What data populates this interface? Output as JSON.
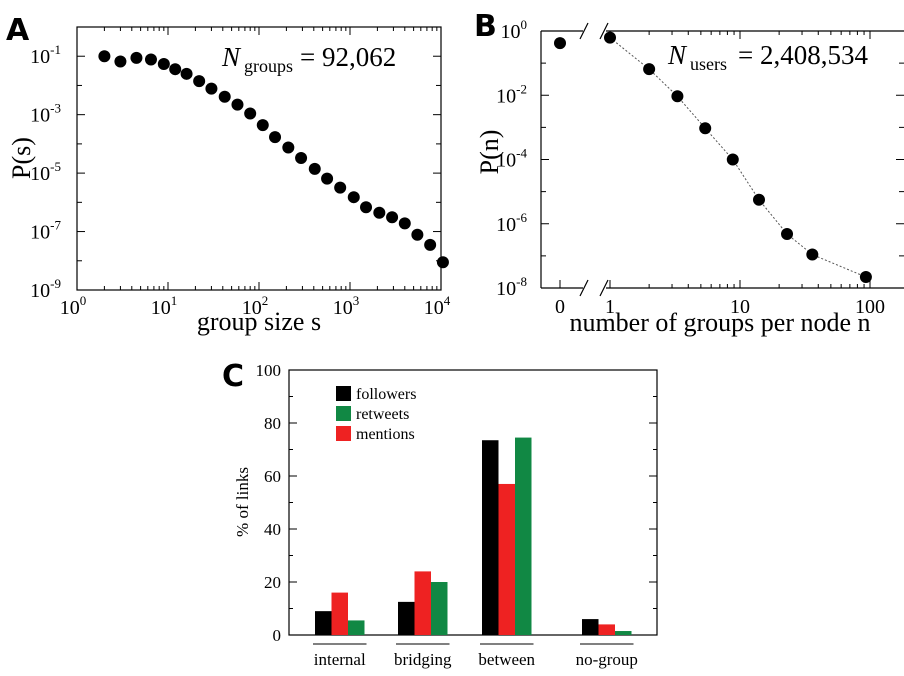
{
  "chart_data": [
    {
      "panel": "A",
      "type": "scatter",
      "xlabel": "group size s",
      "ylabel": "P(s)",
      "annotation": {
        "symbol": "N",
        "subscript": "groups",
        "value": "= 92,062"
      },
      "xscale": "log",
      "yscale": "log",
      "xlim": [
        1,
        10000
      ],
      "ylim": [
        1e-09,
        1
      ],
      "x_ticks": [
        {
          "base": "10",
          "exp": "0"
        },
        {
          "base": "10",
          "exp": "1"
        },
        {
          "base": "10",
          "exp": "2"
        },
        {
          "base": "10",
          "exp": "3"
        },
        {
          "base": "10",
          "exp": "4"
        }
      ],
      "y_ticks": [
        {
          "base": "10",
          "exp": "-9"
        },
        {
          "base": "10",
          "exp": "-7"
        },
        {
          "base": "10",
          "exp": "-5"
        },
        {
          "base": "10",
          "exp": "-3"
        },
        {
          "base": "10",
          "exp": "-1"
        }
      ],
      "points": [
        [
          2,
          0.1
        ],
        [
          3,
          0.066
        ],
        [
          4.5,
          0.088
        ],
        [
          6.5,
          0.077
        ],
        [
          9,
          0.054
        ],
        [
          12,
          0.036
        ],
        [
          16,
          0.025
        ],
        [
          22,
          0.014
        ],
        [
          30,
          0.0078
        ],
        [
          42,
          0.0041
        ],
        [
          58,
          0.0022
        ],
        [
          80,
          0.0011
        ],
        [
          110,
          0.00044
        ],
        [
          150,
          0.00017
        ],
        [
          210,
          7.5e-05
        ],
        [
          290,
          3.3e-05
        ],
        [
          410,
          1.4e-05
        ],
        [
          560,
          6.5e-06
        ],
        [
          780,
          3.2e-06
        ],
        [
          1100,
          1.5e-06
        ],
        [
          1500,
          6.8e-07
        ],
        [
          2100,
          4.4e-07
        ],
        [
          2900,
          3.1e-07
        ],
        [
          4000,
          1.9e-07
        ],
        [
          5500,
          7.8e-08
        ],
        [
          7600,
          3.5e-08
        ],
        [
          10500,
          8.9e-09
        ]
      ],
      "marker_color": "#000000"
    },
    {
      "panel": "B",
      "type": "line",
      "xlabel": "number of groups per node n",
      "ylabel": "P(n)",
      "annotation": {
        "symbol": "N",
        "subscript": "users",
        "value": "= 2,408,534"
      },
      "xscale": "log",
      "yscale": "log",
      "ylim": [
        1e-08,
        1
      ],
      "x_ticks": [
        "0",
        "1",
        "10",
        "100"
      ],
      "y_ticks": [
        {
          "base": "10",
          "exp": "-8"
        },
        {
          "base": "10",
          "exp": "-6"
        },
        {
          "base": "10",
          "exp": "-4"
        },
        {
          "base": "10",
          "exp": "-2"
        },
        {
          "base": "10",
          "exp": "0"
        }
      ],
      "zero_point": [
        0,
        0.42
      ],
      "points": [
        [
          1,
          0.62
        ],
        [
          2,
          0.065
        ],
        [
          3.3,
          0.0093
        ],
        [
          5.4,
          0.00094
        ],
        [
          8.8,
          0.0001
        ],
        [
          14,
          5.6e-06
        ],
        [
          23,
          4.8e-07
        ],
        [
          36,
          1.1e-07
        ],
        [
          93,
          2.2e-08
        ]
      ],
      "marker_color": "#000000",
      "line_color": "#555555"
    },
    {
      "panel": "C",
      "type": "bar",
      "ylabel": "% of links",
      "ylim": [
        0,
        100
      ],
      "y_ticks": [
        "0",
        "20",
        "40",
        "60",
        "80",
        "100"
      ],
      "categories": [
        "internal",
        "bridging",
        "between",
        "no-group"
      ],
      "series": [
        {
          "name": "followers",
          "color": "#000000",
          "values": [
            9,
            12.5,
            73.5,
            6
          ]
        },
        {
          "name": "mentions",
          "color": "#ee2222",
          "values": [
            16,
            24,
            57,
            4
          ]
        },
        {
          "name": "retweets",
          "color": "#118844",
          "values": [
            5.5,
            20,
            74.5,
            1.5
          ]
        }
      ],
      "bar_order": [
        [
          "followers",
          "mentions",
          "retweets"
        ],
        [
          "followers",
          "mentions",
          "retweets"
        ],
        [
          "followers",
          "mentions",
          "retweets"
        ],
        [
          "followers",
          "mentions",
          "retweets"
        ]
      ],
      "legend": {
        "placement": "top-left",
        "order": [
          "followers",
          "retweets",
          "mentions"
        ]
      }
    }
  ],
  "panel_labels": [
    "A",
    "B",
    "C"
  ]
}
